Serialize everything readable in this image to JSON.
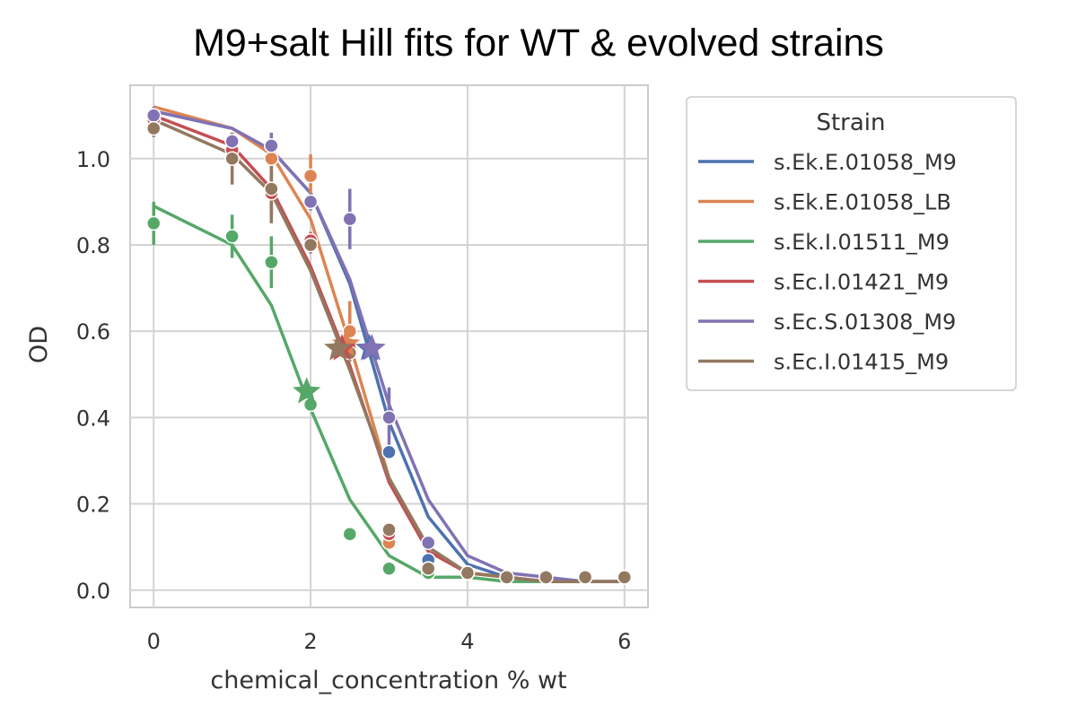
{
  "chart_data": {
    "type": "line",
    "title": "M9+salt Hill fits for WT & evolved strains",
    "xlabel": "chemical_concentration % wt",
    "ylabel": "OD",
    "xlim": [
      -0.3,
      6.3
    ],
    "ylim": [
      -0.04,
      1.17
    ],
    "xticks": [
      0,
      2,
      4,
      6
    ],
    "xtick_labels": [
      "0",
      "2",
      "4",
      "6"
    ],
    "yticks": [
      0.0,
      0.2,
      0.4,
      0.6,
      0.8,
      1.0
    ],
    "ytick_labels": [
      "0.0",
      "0.2",
      "0.4",
      "0.6",
      "0.8",
      "1.0"
    ],
    "grid": true,
    "legend": {
      "title": "Strain",
      "placement": "outside-right"
    },
    "fit_x": [
      0,
      1,
      1.5,
      2,
      2.5,
      3,
      3.5,
      4,
      4.5,
      5,
      5.5,
      6
    ],
    "series": [
      {
        "name": "s.Ek.E.01058_M9",
        "color": "#4c72b0",
        "fit": [
          1.11,
          1.07,
          1.02,
          0.92,
          0.71,
          0.39,
          0.17,
          0.06,
          0.03,
          0.02,
          0.02,
          0.02
        ],
        "points": [
          {
            "x": 0,
            "y": 1.1,
            "err": 0.02
          },
          {
            "x": 1,
            "y": 1.04,
            "err": 0.02
          },
          {
            "x": 1.5,
            "y": 1.03,
            "err": 0.02
          },
          {
            "x": 2,
            "y": 0.9,
            "err": 0.02
          },
          {
            "x": 2.5,
            "y": 0.86,
            "err": 0.03
          },
          {
            "x": 3,
            "y": 0.32,
            "err": 0.01
          },
          {
            "x": 3.5,
            "y": 0.07,
            "err": 0.01
          },
          {
            "x": 4,
            "y": 0.04,
            "err": 0.01
          },
          {
            "x": 4.5,
            "y": 0.03,
            "err": 0.005
          },
          {
            "x": 5,
            "y": 0.03,
            "err": 0.005
          },
          {
            "x": 5.5,
            "y": 0.03,
            "err": 0.005
          },
          {
            "x": 6,
            "y": 0.03,
            "err": 0.005
          }
        ],
        "ic50": {
          "x": 2.75,
          "y": 0.56
        }
      },
      {
        "name": "s.Ek.E.01058_LB",
        "color": "#dd8452",
        "fit": [
          1.12,
          1.07,
          1.01,
          0.86,
          0.57,
          0.26,
          0.09,
          0.04,
          0.03,
          0.02,
          0.02,
          0.02
        ],
        "points": [
          {
            "x": 0,
            "y": 1.09,
            "err": 0.02
          },
          {
            "x": 1,
            "y": 1.04,
            "err": 0.02
          },
          {
            "x": 1.5,
            "y": 1.0,
            "err": 0.03
          },
          {
            "x": 2,
            "y": 0.96,
            "err": 0.05
          },
          {
            "x": 2.5,
            "y": 0.6,
            "err": 0.07
          },
          {
            "x": 3,
            "y": 0.11,
            "err": 0.01
          },
          {
            "x": 3.5,
            "y": 0.05,
            "err": 0.01
          },
          {
            "x": 4,
            "y": 0.04,
            "err": 0.005
          },
          {
            "x": 4.5,
            "y": 0.03,
            "err": 0.005
          },
          {
            "x": 5,
            "y": 0.03,
            "err": 0.005
          },
          {
            "x": 5.5,
            "y": 0.03,
            "err": 0.005
          },
          {
            "x": 6,
            "y": 0.03,
            "err": 0.005
          }
        ],
        "ic50": {
          "x": 2.45,
          "y": 0.57
        }
      },
      {
        "name": "s.Ek.I.01511_M9",
        "color": "#55a868",
        "fit": [
          0.89,
          0.8,
          0.66,
          0.42,
          0.21,
          0.08,
          0.03,
          0.03,
          0.02,
          0.02,
          0.02,
          0.02
        ],
        "points": [
          {
            "x": 0,
            "y": 0.85,
            "err": 0.05
          },
          {
            "x": 1,
            "y": 0.82,
            "err": 0.05
          },
          {
            "x": 1.5,
            "y": 0.76,
            "err": 0.06
          },
          {
            "x": 2,
            "y": 0.43,
            "err": 0.01
          },
          {
            "x": 2.5,
            "y": 0.13,
            "err": 0.01
          },
          {
            "x": 3,
            "y": 0.05,
            "err": 0.005
          },
          {
            "x": 3.5,
            "y": 0.04,
            "err": 0.005
          },
          {
            "x": 4,
            "y": 0.04,
            "err": 0.005
          },
          {
            "x": 4.5,
            "y": 0.03,
            "err": 0.005
          },
          {
            "x": 5,
            "y": 0.03,
            "err": 0.005
          },
          {
            "x": 5.5,
            "y": 0.03,
            "err": 0.005
          },
          {
            "x": 6,
            "y": 0.03,
            "err": 0.005
          }
        ],
        "ic50": {
          "x": 1.95,
          "y": 0.46
        }
      },
      {
        "name": "s.Ec.I.01421_M9",
        "color": "#c44e52",
        "fit": [
          1.1,
          1.03,
          0.93,
          0.75,
          0.52,
          0.25,
          0.09,
          0.04,
          0.03,
          0.02,
          0.02,
          0.02
        ],
        "points": [
          {
            "x": 0,
            "y": 1.09,
            "err": 0.02
          },
          {
            "x": 1,
            "y": 1.02,
            "err": 0.03
          },
          {
            "x": 1.5,
            "y": 0.92,
            "err": 0.05
          },
          {
            "x": 2,
            "y": 0.81,
            "err": 0.02
          },
          {
            "x": 2.5,
            "y": 0.56,
            "err": 0.02
          },
          {
            "x": 3,
            "y": 0.13,
            "err": 0.01
          },
          {
            "x": 3.5,
            "y": 0.05,
            "err": 0.01
          },
          {
            "x": 4,
            "y": 0.04,
            "err": 0.005
          },
          {
            "x": 4.5,
            "y": 0.03,
            "err": 0.005
          },
          {
            "x": 5,
            "y": 0.03,
            "err": 0.005
          },
          {
            "x": 5.5,
            "y": 0.03,
            "err": 0.005
          },
          {
            "x": 6,
            "y": 0.03,
            "err": 0.005
          }
        ],
        "ic50": {
          "x": 2.4,
          "y": 0.56
        }
      },
      {
        "name": "s.Ec.S.01308_M9",
        "color": "#8172b3",
        "fit": [
          1.11,
          1.07,
          1.02,
          0.92,
          0.72,
          0.43,
          0.21,
          0.08,
          0.04,
          0.03,
          0.02,
          0.02
        ],
        "points": [
          {
            "x": 0,
            "y": 1.1,
            "err": 0.02
          },
          {
            "x": 1,
            "y": 1.04,
            "err": 0.02
          },
          {
            "x": 1.5,
            "y": 1.03,
            "err": 0.03
          },
          {
            "x": 2,
            "y": 0.9,
            "err": 0.02
          },
          {
            "x": 2.5,
            "y": 0.86,
            "err": 0.07
          },
          {
            "x": 3,
            "y": 0.4,
            "err": 0.07
          },
          {
            "x": 3.5,
            "y": 0.11,
            "err": 0.01
          },
          {
            "x": 4,
            "y": 0.04,
            "err": 0.01
          },
          {
            "x": 4.5,
            "y": 0.03,
            "err": 0.005
          },
          {
            "x": 5,
            "y": 0.03,
            "err": 0.005
          },
          {
            "x": 5.5,
            "y": 0.03,
            "err": 0.005
          },
          {
            "x": 6,
            "y": 0.03,
            "err": 0.005
          }
        ],
        "ic50": {
          "x": 2.78,
          "y": 0.56
        }
      },
      {
        "name": "s.Ec.I.01415_M9",
        "color": "#937860",
        "fit": [
          1.09,
          1.01,
          0.92,
          0.74,
          0.51,
          0.26,
          0.1,
          0.04,
          0.03,
          0.02,
          0.02,
          0.02
        ],
        "points": [
          {
            "x": 0,
            "y": 1.07,
            "err": 0.02
          },
          {
            "x": 1,
            "y": 1.0,
            "err": 0.06
          },
          {
            "x": 1.5,
            "y": 0.93,
            "err": 0.08
          },
          {
            "x": 2,
            "y": 0.8,
            "err": 0.02
          },
          {
            "x": 2.5,
            "y": 0.55,
            "err": 0.02
          },
          {
            "x": 3,
            "y": 0.14,
            "err": 0.01
          },
          {
            "x": 3.5,
            "y": 0.05,
            "err": 0.01
          },
          {
            "x": 4,
            "y": 0.04,
            "err": 0.005
          },
          {
            "x": 4.5,
            "y": 0.03,
            "err": 0.005
          },
          {
            "x": 5,
            "y": 0.03,
            "err": 0.005
          },
          {
            "x": 5.5,
            "y": 0.03,
            "err": 0.005
          },
          {
            "x": 6,
            "y": 0.03,
            "err": 0.005
          }
        ],
        "ic50": {
          "x": 2.35,
          "y": 0.56
        }
      }
    ]
  }
}
